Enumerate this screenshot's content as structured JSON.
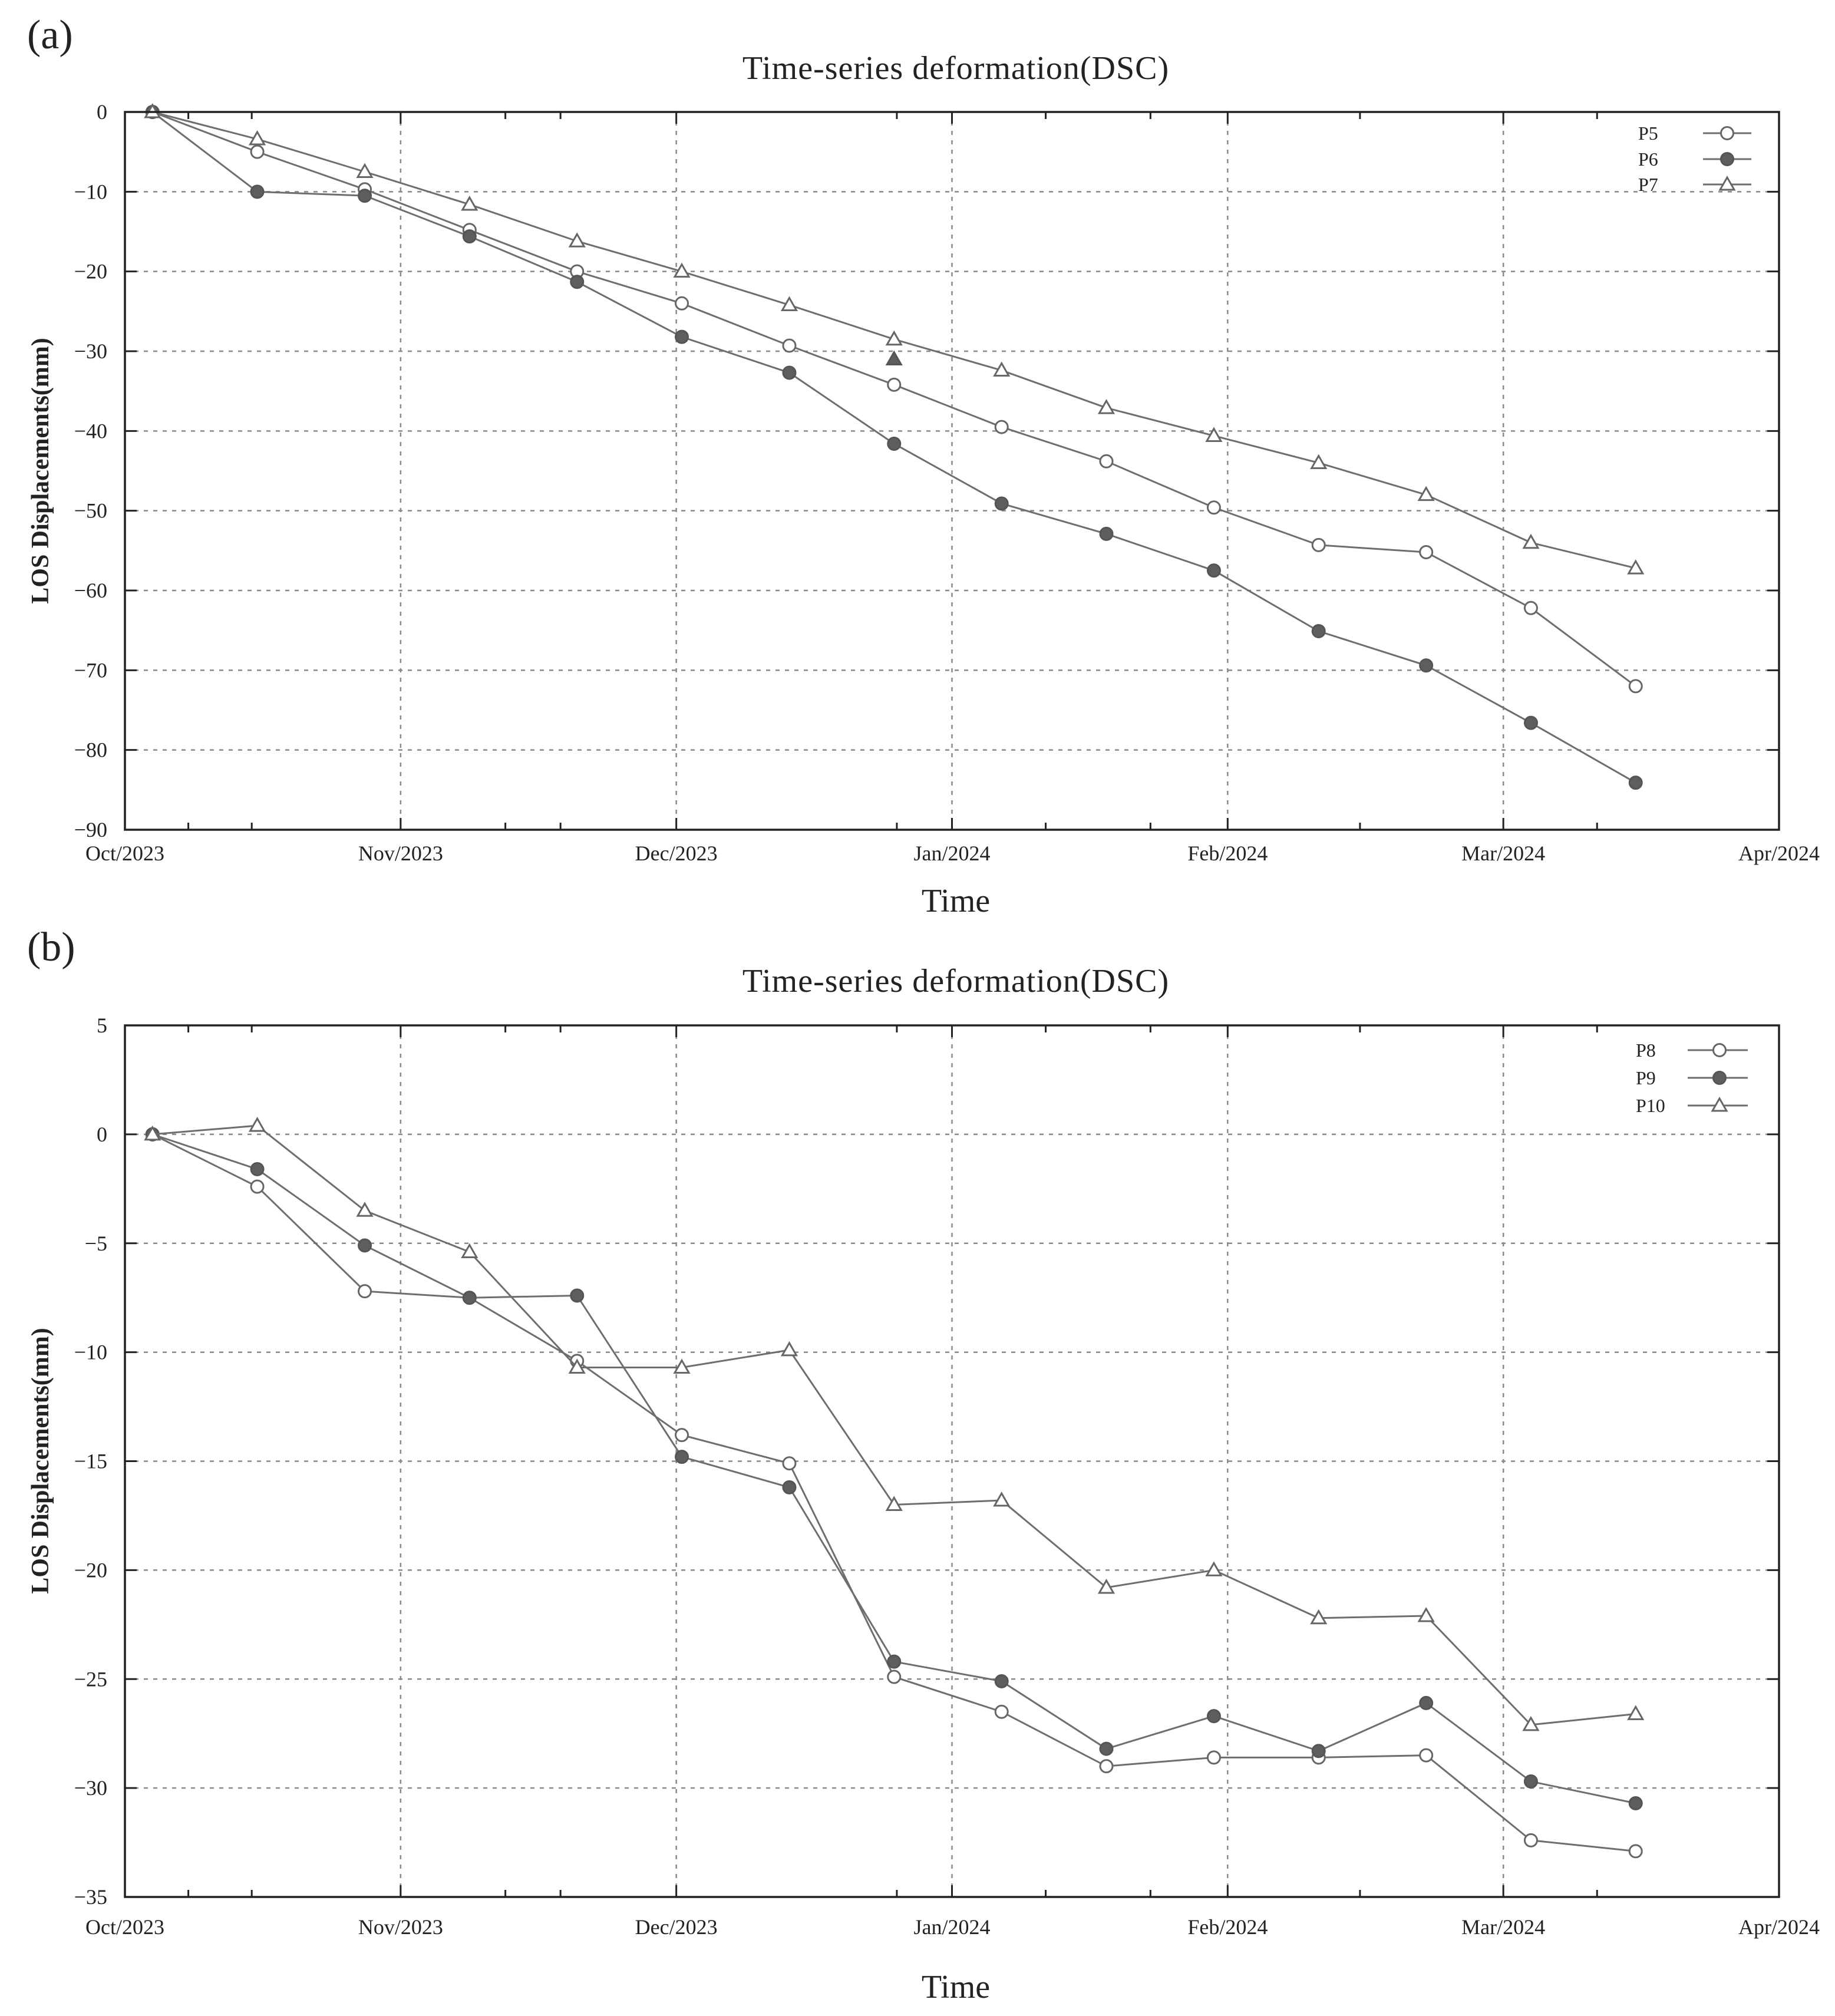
{
  "chart_data": [
    {
      "panel_label": "(a)",
      "type": "line",
      "title": "Time-series deformation(DSC)",
      "xlabel": "Time",
      "ylabel": "LOS Displacements(mm)",
      "xlim": [
        0,
        6
      ],
      "ylim": [
        -90,
        0
      ],
      "yticks": [
        0,
        -10,
        -20,
        -30,
        -40,
        -50,
        -60,
        -70,
        -80,
        -90
      ],
      "ytick_labels": [
        "0",
        "−10",
        "−20",
        "−30",
        "−40",
        "−50",
        "−60",
        "−70",
        "−80",
        "−90"
      ],
      "xticks": [
        0,
        1,
        2,
        3,
        4,
        5,
        6
      ],
      "xtick_labels": [
        "Oct/2023",
        "Nov/2023",
        "Dec/2023",
        "Jan/2024",
        "Feb/2024",
        "Mar/2024",
        "Apr/2024"
      ],
      "x_minor_ticks": [
        0.23,
        0.46,
        1.38,
        1.58,
        2.8,
        3.34,
        3.72,
        4.48,
        5.34
      ],
      "grid": true,
      "legend_position": "top-right",
      "x": [
        0.1,
        0.48,
        0.87,
        1.25,
        1.64,
        2.02,
        2.41,
        2.79,
        3.18,
        3.56,
        3.95,
        4.33,
        4.72,
        5.1,
        5.48
      ],
      "series": [
        {
          "name": "P5",
          "marker": "open-circle",
          "values": [
            0,
            -5,
            -9.7,
            -14.8,
            -20,
            -24,
            -29.3,
            -34.2,
            -39.5,
            -43.8,
            -49.6,
            -54.3,
            -55.2,
            -62.2,
            -72
          ]
        },
        {
          "name": "P6",
          "marker": "filled-circle",
          "values": [
            0,
            -10,
            -10.5,
            -15.6,
            -21.3,
            -28.2,
            -32.7,
            -41.6,
            -49.1,
            -52.9,
            -57.5,
            -65.1,
            -69.4,
            -76.6,
            -84.1
          ]
        },
        {
          "name": "P7",
          "marker": "open-triangle",
          "values": [
            0,
            -3.4,
            -7.5,
            -11.6,
            -16.2,
            -20,
            -24.2,
            -28.5,
            -32.4,
            -37.1,
            -40.6,
            -44,
            -48,
            -54,
            -57.2
          ]
        }
      ],
      "annotations": [
        {
          "marker": "filled-triangle",
          "x": 2.79,
          "y": -31
        }
      ]
    },
    {
      "panel_label": "(b)",
      "type": "line",
      "title": "Time-series deformation(DSC)",
      "xlabel": "Time",
      "ylabel": "LOS Displacements(mm)",
      "xlim": [
        0,
        6
      ],
      "ylim": [
        -35,
        5
      ],
      "yticks": [
        5,
        0,
        -5,
        -10,
        -15,
        -20,
        -25,
        -30,
        -35
      ],
      "ytick_labels": [
        "5",
        "0",
        "−5",
        "−10",
        "−15",
        "−20",
        "−25",
        "−30",
        "−35"
      ],
      "xticks": [
        0,
        1,
        2,
        3,
        4,
        5,
        6
      ],
      "xtick_labels": [
        "Oct/2023",
        "Nov/2023",
        "Dec/2023",
        "Jan/2024",
        "Feb/2024",
        "Mar/2024",
        "Apr/2024"
      ],
      "x_minor_ticks": [
        0.23,
        0.46,
        1.38,
        1.58,
        2.8,
        3.34,
        3.72,
        4.48,
        5.34
      ],
      "grid": true,
      "legend_position": "top-right",
      "x": [
        0.1,
        0.48,
        0.87,
        1.25,
        1.64,
        2.02,
        2.41,
        2.79,
        3.18,
        3.56,
        3.95,
        4.33,
        4.72,
        5.1,
        5.48
      ],
      "series": [
        {
          "name": "P8",
          "marker": "open-circle",
          "values": [
            0,
            -2.4,
            -7.2,
            -7.5,
            -10.4,
            -13.8,
            -15.1,
            -24.9,
            -26.5,
            -29,
            -28.6,
            -28.6,
            -28.5,
            -32.4,
            -32.9
          ]
        },
        {
          "name": "P9",
          "marker": "filled-circle",
          "values": [
            0,
            -1.6,
            -5.1,
            -7.5,
            -7.4,
            -14.8,
            -16.2,
            -24.2,
            -25.1,
            -28.2,
            -26.7,
            -28.3,
            -26.1,
            -29.7,
            -30.7
          ]
        },
        {
          "name": "P10",
          "marker": "open-triangle",
          "values": [
            0,
            0.4,
            -3.5,
            -5.4,
            -10.7,
            -10.7,
            -9.9,
            -17,
            -16.8,
            -20.8,
            -20,
            -22.2,
            -22.1,
            -27.1,
            -26.6
          ]
        }
      ],
      "annotations": []
    }
  ]
}
